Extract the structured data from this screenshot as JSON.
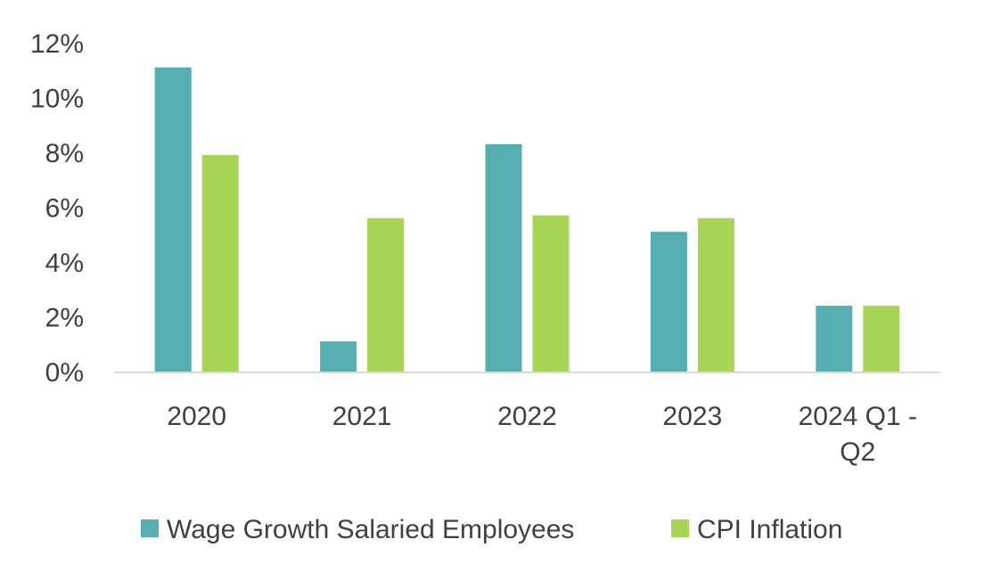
{
  "chart_data": {
    "type": "bar",
    "categories": [
      "2020",
      "2021",
      "2022",
      "2023",
      "2024 Q1 - Q2"
    ],
    "category_lines": [
      [
        "2020"
      ],
      [
        "2021"
      ],
      [
        "2022"
      ],
      [
        "2023"
      ],
      [
        "2024 Q1 -",
        "Q2"
      ]
    ],
    "series": [
      {
        "name": "Wage Growth Salaried Employees",
        "color": "#57AEB0",
        "values": [
          11.1,
          1.1,
          8.3,
          5.1,
          2.4
        ]
      },
      {
        "name": "CPI Inflation",
        "color": "#A9D556",
        "values": [
          7.9,
          5.6,
          5.7,
          5.6,
          2.4
        ]
      }
    ],
    "yticks": [
      "0%",
      "2%",
      "4%",
      "6%",
      "8%",
      "10%",
      "12%"
    ],
    "ylim": [
      0,
      12
    ],
    "legend_position": "bottom",
    "grid": false,
    "axis_color": "#D9D9D9"
  }
}
